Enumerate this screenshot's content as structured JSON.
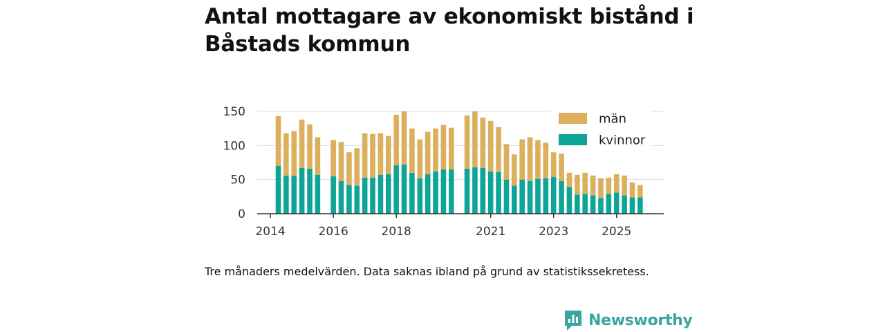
{
  "header": {
    "title": "Antal mottagare av ekonomiskt bistånd i Båstads kommun"
  },
  "footer": {
    "caption": "Tre månaders medelvärden. Data saknas ibland på grund av statistikssekretess.",
    "brand": "Newsworthy"
  },
  "colors": {
    "men": "#dcaf5c",
    "women": "#0ea596",
    "grid": "#dddddd",
    "axis": "#333333"
  },
  "chart_data": {
    "type": "bar",
    "stacked": true,
    "title": "Antal mottagare av ekonomiskt bistånd i Båstads kommun",
    "xlabel": "",
    "ylabel": "",
    "ylim": [
      0,
      150
    ],
    "xlim": [
      2013.58,
      2026.5
    ],
    "yticks": [
      0,
      50,
      100,
      150
    ],
    "xticks": [
      2014,
      2016,
      2018,
      2021,
      2023,
      2025
    ],
    "legend": {
      "position": "top-right",
      "entries": [
        "män",
        "kvinnor"
      ]
    },
    "x": [
      2014.25,
      2014.5,
      2014.75,
      2015.0,
      2015.25,
      2015.5,
      2016.0,
      2016.25,
      2016.5,
      2016.75,
      2017.0,
      2017.25,
      2017.5,
      2017.75,
      2018.0,
      2018.25,
      2018.5,
      2018.75,
      2019.0,
      2019.25,
      2019.5,
      2019.75,
      2020.25,
      2020.5,
      2020.75,
      2021.0,
      2021.25,
      2021.5,
      2021.75,
      2022.0,
      2022.25,
      2022.5,
      2022.75,
      2023.0,
      2023.25,
      2023.5,
      2023.75,
      2024.0,
      2024.25,
      2024.5,
      2024.75,
      2025.0,
      2025.25,
      2025.5,
      2025.75
    ],
    "series": [
      {
        "name": "kvinnor",
        "values": [
          70,
          56,
          56,
          67,
          66,
          57,
          55,
          48,
          42,
          41,
          53,
          53,
          57,
          58,
          71,
          72,
          60,
          52,
          58,
          62,
          65,
          65,
          66,
          68,
          67,
          62,
          61,
          50,
          41,
          50,
          48,
          51,
          52,
          54,
          48,
          39,
          28,
          29,
          27,
          23,
          29,
          31,
          27,
          24,
          24
        ]
      },
      {
        "name": "män",
        "values": [
          73,
          62,
          65,
          71,
          65,
          55,
          53,
          57,
          48,
          55,
          65,
          64,
          61,
          56,
          74,
          78,
          65,
          57,
          62,
          63,
          65,
          61,
          78,
          82,
          74,
          74,
          66,
          52,
          46,
          59,
          64,
          57,
          52,
          36,
          40,
          21,
          29,
          31,
          29,
          29,
          24,
          27,
          29,
          22,
          18
        ]
      }
    ]
  }
}
